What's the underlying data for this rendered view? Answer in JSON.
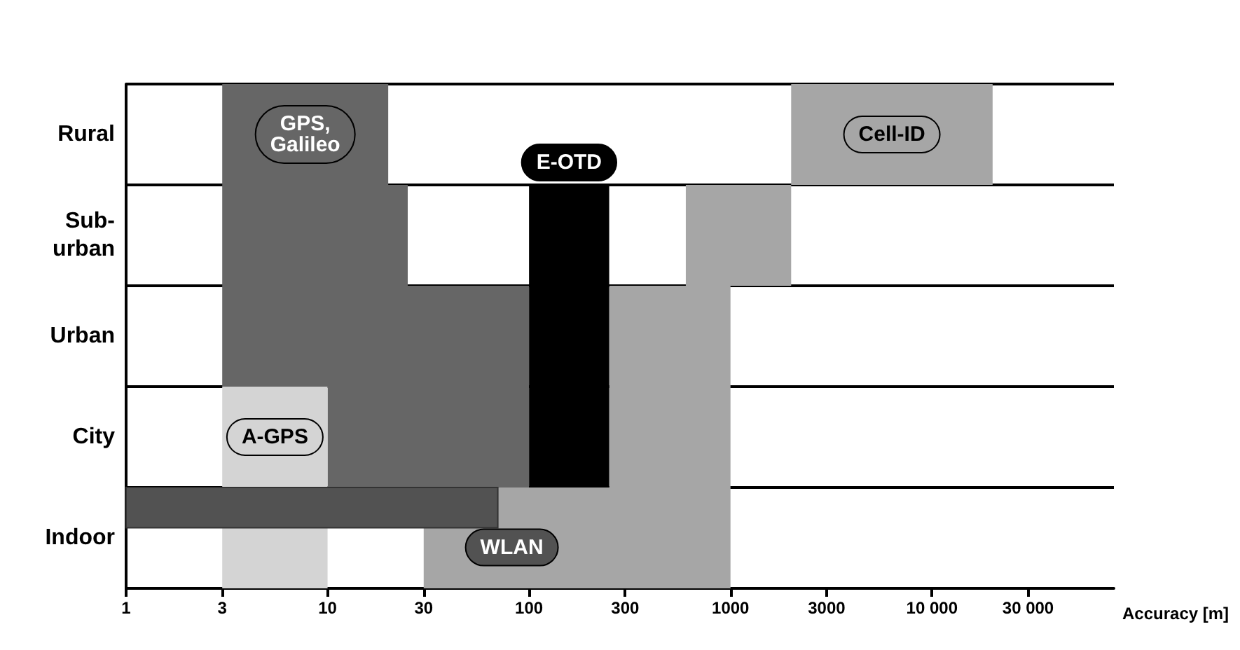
{
  "chart_data": {
    "type": "bar",
    "orientation": "horizontal",
    "log": "x",
    "grid": "y",
    "xlabel": "Accuracy [m]",
    "categories": [
      "Rural",
      "Sub-\nurban",
      "Urban",
      "City",
      "Indoor"
    ],
    "xlim": [
      1,
      80000
    ],
    "xticks": [
      1,
      3,
      10,
      30,
      100,
      300,
      1000,
      3000,
      {
        "value": 10000,
        "label": "10 000"
      },
      {
        "value": 30000,
        "label": "30 000"
      }
    ],
    "series": [
      {
        "name": "Cell-ID",
        "color": "#a6a6a6",
        "base": [
          2000,
          600,
          250,
          250,
          30
        ],
        "values": [
          18000,
          1400,
          750,
          750,
          970
        ]
      },
      {
        "name": "GPS,\nGalileo",
        "color": "#666666",
        "base": [
          3,
          3,
          3,
          10,
          null
        ],
        "values": [
          17,
          22,
          97,
          90,
          null
        ]
      },
      {
        "name": "A-GPS",
        "color": "#d4d4d4",
        "base": [
          null,
          null,
          null,
          3,
          3
        ],
        "values": [
          null,
          null,
          null,
          7,
          7
        ]
      },
      {
        "name": "WLAN",
        "color": "#525252",
        "base": [
          null,
          null,
          null,
          null,
          1
        ],
        "values": [
          null,
          null,
          null,
          null,
          69
        ]
      },
      {
        "name": "E-OTD",
        "color": "#000000",
        "base": [
          null,
          100,
          100,
          100,
          null
        ],
        "values": [
          null,
          150,
          150,
          150,
          null
        ]
      }
    ]
  }
}
